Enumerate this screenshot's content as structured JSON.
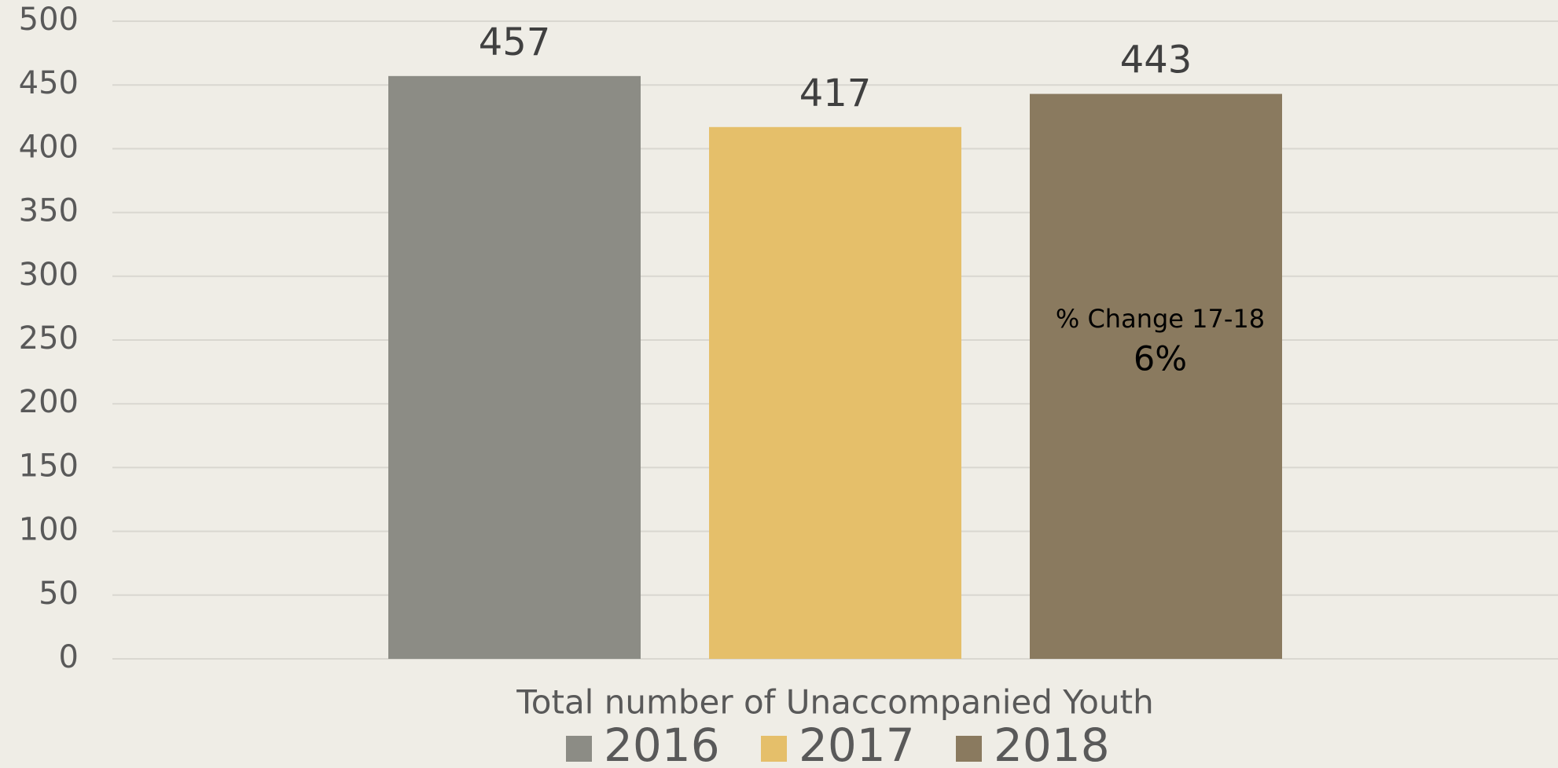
{
  "chart_data": {
    "type": "bar",
    "categories": [
      "Total number of Unaccompanied Youth"
    ],
    "series": [
      {
        "name": "2016",
        "color": "#8c8c85",
        "values": [
          457
        ]
      },
      {
        "name": "2017",
        "color": "#e5bf6a",
        "values": [
          417
        ]
      },
      {
        "name": "2018",
        "color": "#8a7a5f",
        "values": [
          443
        ]
      }
    ],
    "ylim": [
      0,
      500
    ],
    "yticks": [
      0,
      50,
      100,
      150,
      200,
      250,
      300,
      350,
      400,
      450,
      500
    ],
    "grid": true,
    "legend": "bottom",
    "annotations": [
      "% Change 17-18",
      "6%"
    ]
  }
}
